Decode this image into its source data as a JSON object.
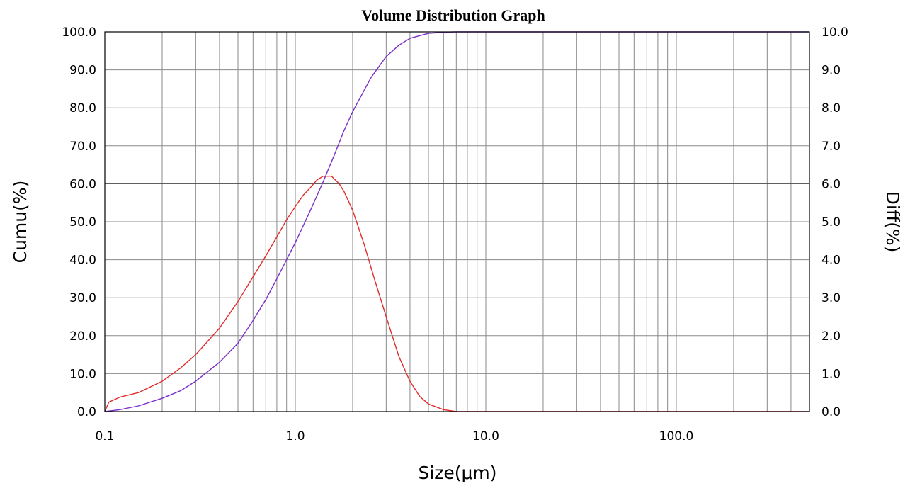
{
  "chart_data": {
    "type": "line",
    "title": "Volume Distribution Graph",
    "xlabel": "Size(μm)",
    "ylabel_left": "Cumu(%)",
    "ylabel_right": "Diff(%)",
    "x_scale": "log",
    "xlim": [
      0.1,
      500
    ],
    "ylim_left": [
      0,
      100
    ],
    "ylim_right": [
      0,
      10
    ],
    "x_tick_labels": [
      "0.1",
      "1.0",
      "10.0",
      "100.0"
    ],
    "x_tick_values": [
      0.1,
      1,
      10,
      100
    ],
    "y_left_tick_labels": [
      "0.0",
      "10.0",
      "20.0",
      "30.0",
      "40.0",
      "50.0",
      "60.0",
      "70.0",
      "80.0",
      "90.0",
      "100.0"
    ],
    "y_right_tick_labels": [
      "0.0",
      "1.0",
      "2.0",
      "3.0",
      "4.0",
      "5.0",
      "6.0",
      "7.0",
      "8.0",
      "9.0",
      "10.0"
    ],
    "grid": true,
    "series": [
      {
        "axis": "left",
        "color": "#7b2fc9",
        "points": [
          [
            0.1,
            0
          ],
          [
            0.12,
            0.5
          ],
          [
            0.15,
            1.5
          ],
          [
            0.2,
            3.5
          ],
          [
            0.25,
            5.5
          ],
          [
            0.3,
            8
          ],
          [
            0.4,
            13
          ],
          [
            0.5,
            18
          ],
          [
            0.6,
            24
          ],
          [
            0.7,
            29.5
          ],
          [
            0.8,
            35
          ],
          [
            0.9,
            40
          ],
          [
            1.0,
            44.5
          ],
          [
            1.2,
            53
          ],
          [
            1.4,
            60.5
          ],
          [
            1.6,
            67.5
          ],
          [
            1.8,
            74
          ],
          [
            2.0,
            79
          ],
          [
            2.5,
            88
          ],
          [
            3.0,
            93.5
          ],
          [
            3.5,
            96.5
          ],
          [
            4.0,
            98.3
          ],
          [
            5.0,
            99.6
          ],
          [
            6.0,
            99.9
          ],
          [
            7.0,
            100
          ],
          [
            500,
            100
          ]
        ]
      },
      {
        "axis": "right",
        "color": "#e32a2a",
        "points": [
          [
            0.1,
            0
          ],
          [
            0.105,
            0.25
          ],
          [
            0.12,
            0.38
          ],
          [
            0.15,
            0.5
          ],
          [
            0.2,
            0.8
          ],
          [
            0.25,
            1.15
          ],
          [
            0.3,
            1.5
          ],
          [
            0.4,
            2.2
          ],
          [
            0.5,
            2.9
          ],
          [
            0.6,
            3.55
          ],
          [
            0.7,
            4.1
          ],
          [
            0.8,
            4.6
          ],
          [
            0.9,
            5.05
          ],
          [
            1.0,
            5.4
          ],
          [
            1.1,
            5.7
          ],
          [
            1.2,
            5.9
          ],
          [
            1.3,
            6.1
          ],
          [
            1.4,
            6.2
          ],
          [
            1.55,
            6.2
          ],
          [
            1.7,
            6.0
          ],
          [
            1.8,
            5.8
          ],
          [
            2.0,
            5.3
          ],
          [
            2.3,
            4.4
          ],
          [
            2.6,
            3.5
          ],
          [
            3.0,
            2.5
          ],
          [
            3.5,
            1.45
          ],
          [
            4.0,
            0.8
          ],
          [
            4.5,
            0.4
          ],
          [
            5.0,
            0.2
          ],
          [
            6.0,
            0.05
          ],
          [
            7.0,
            0
          ],
          [
            500,
            0
          ]
        ]
      }
    ]
  }
}
